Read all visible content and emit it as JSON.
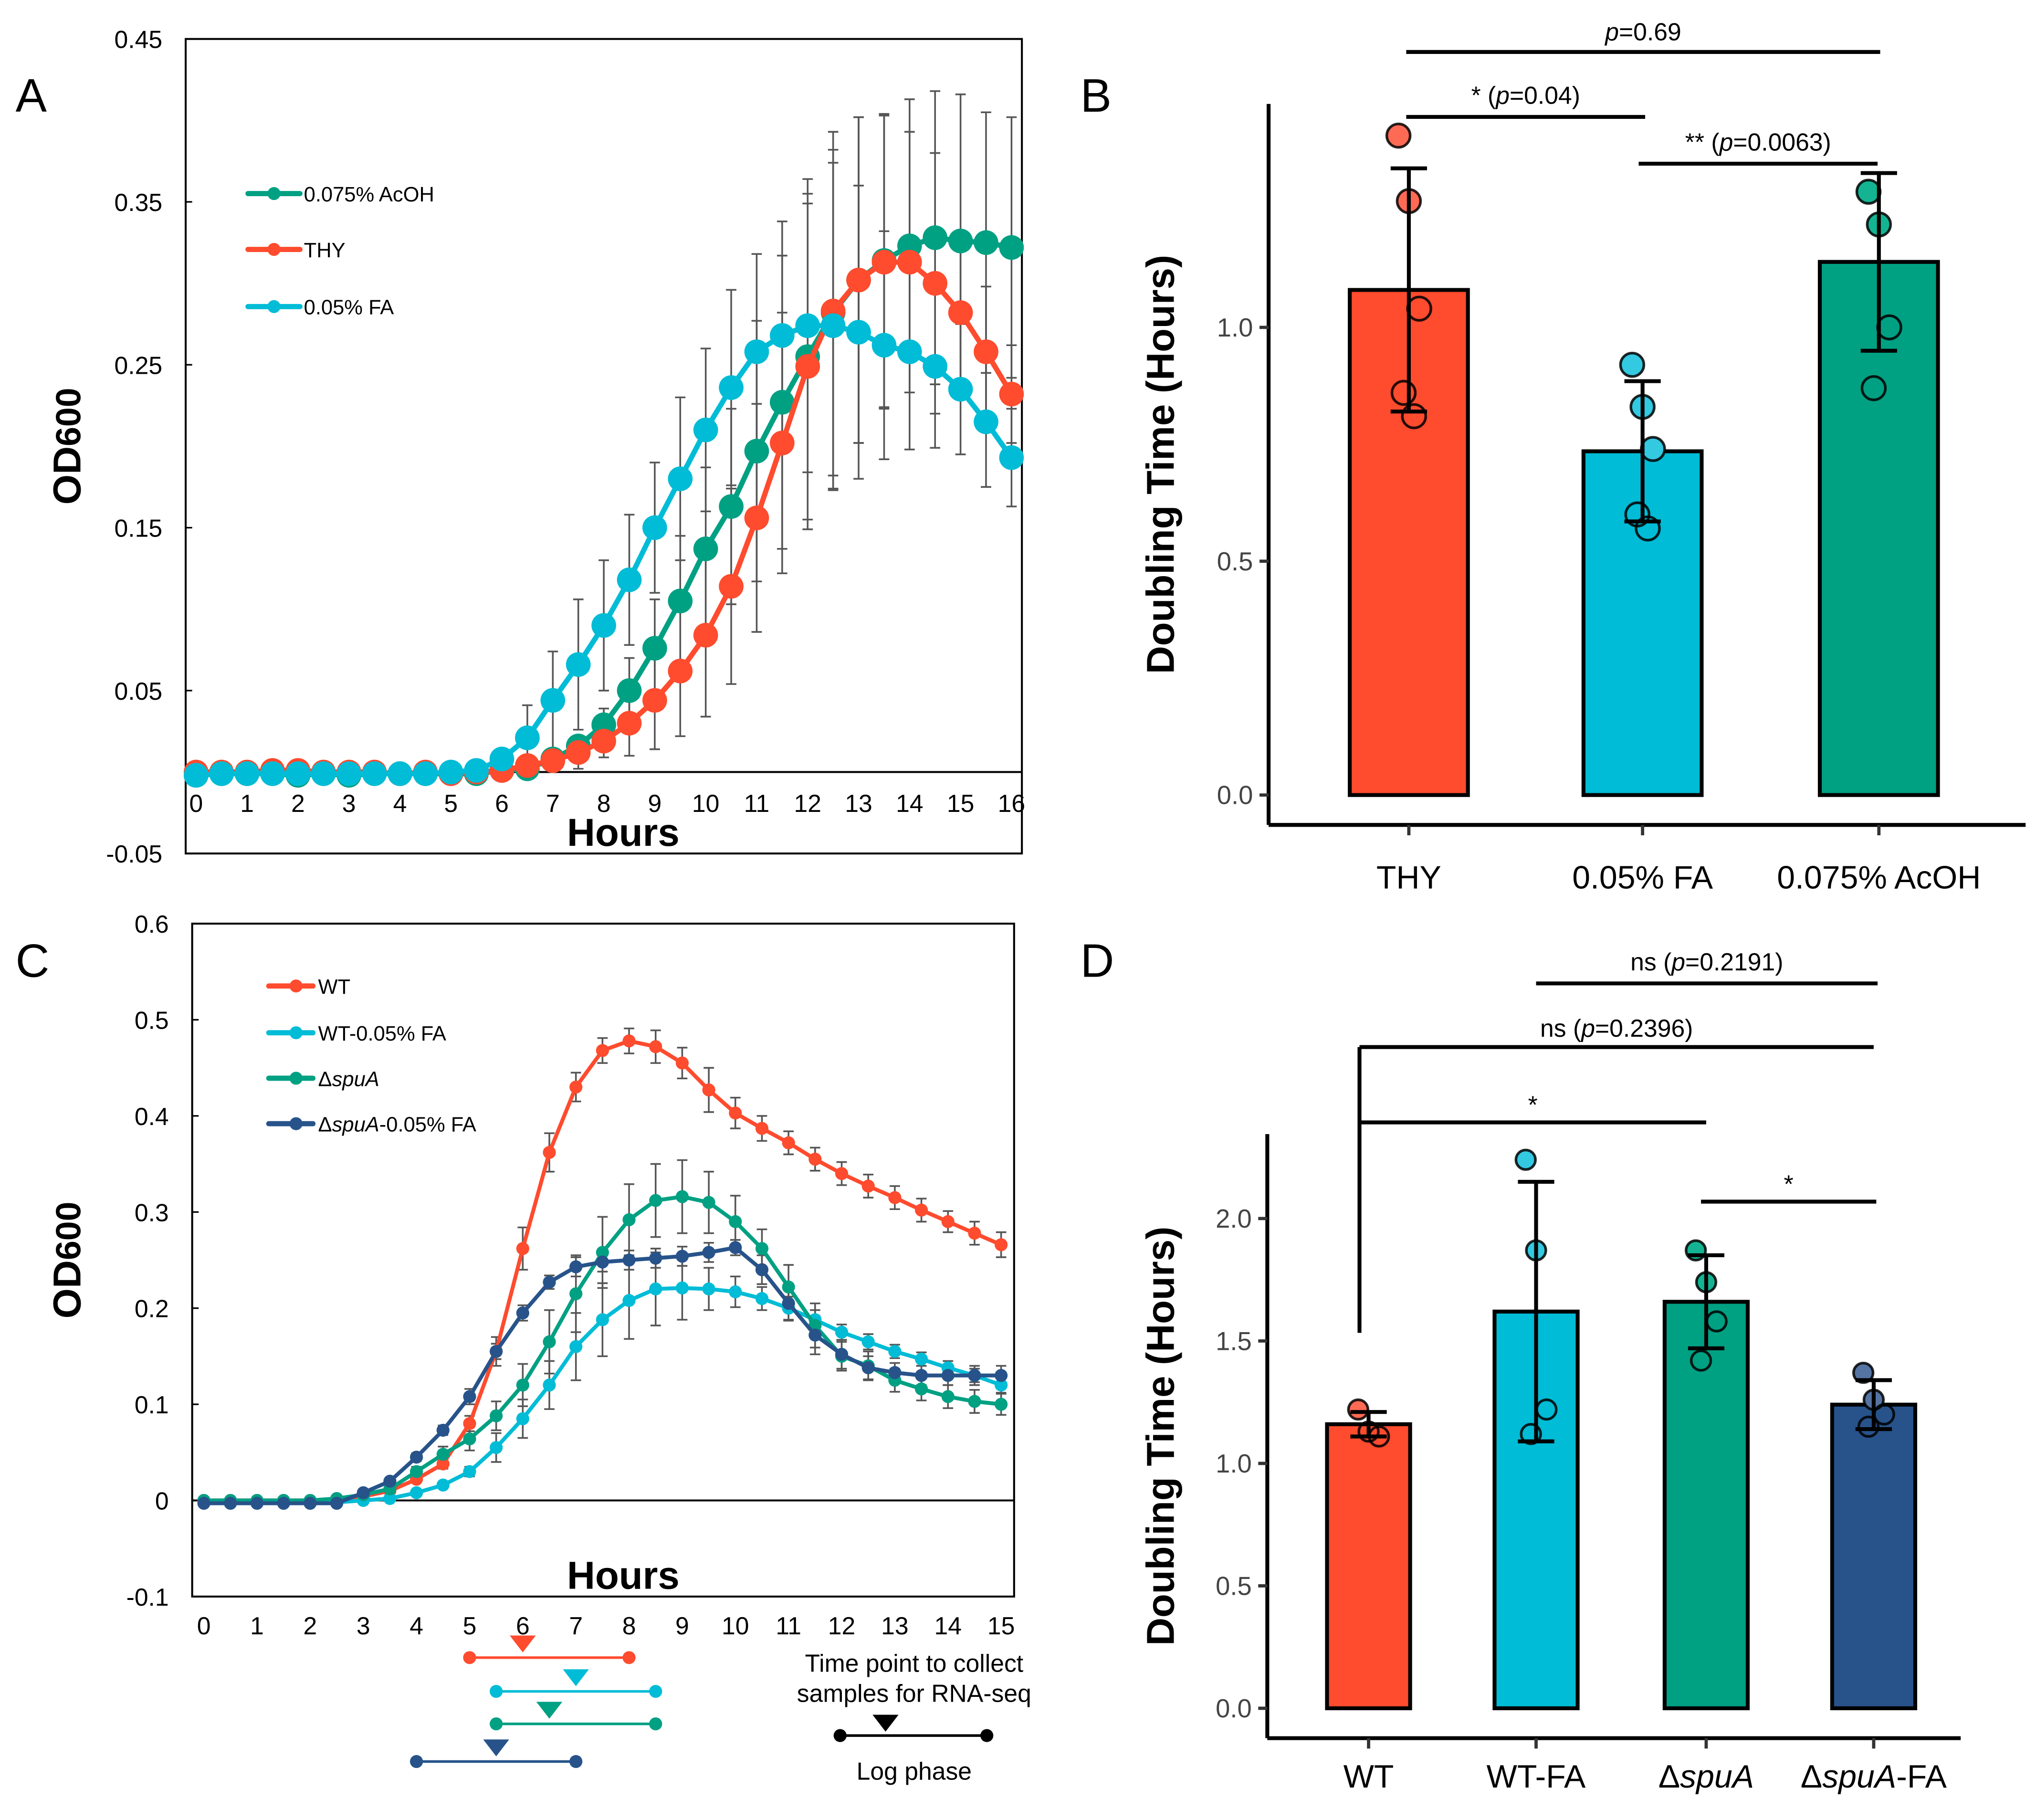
{
  "figure": {
    "panels": [
      "A",
      "B",
      "C",
      "D"
    ]
  },
  "colors": {
    "red": "#ff4b2e",
    "cyan": "#00bcd6",
    "green": "#00a083",
    "navy": "#27538a",
    "errorbar": "#555555"
  },
  "chart_data": [
    {
      "panel": "A",
      "type": "line",
      "xlabel": "Hours",
      "ylabel": "OD600",
      "ylabel_main": "OD",
      "ylabel_sub": "600",
      "xlim": [
        0,
        16
      ],
      "ylim": [
        -0.05,
        0.45
      ],
      "xticks": [
        "0",
        "1",
        "2",
        "3",
        "4",
        "5",
        "6",
        "7",
        "8",
        "9",
        "10",
        "11",
        "12",
        "13",
        "14",
        "15",
        "16"
      ],
      "yticks": [
        "0.45",
        "0.35",
        "0.25",
        "0.15",
        "0.05",
        "-0.05"
      ],
      "ytick_values": [
        0.45,
        0.35,
        0.25,
        0.15,
        0.05,
        -0.05
      ],
      "legend_position": "upper-left",
      "x": [
        0,
        0.5,
        1,
        1.5,
        2,
        2.5,
        3,
        3.5,
        4,
        4.5,
        5,
        5.5,
        6,
        6.5,
        7,
        7.5,
        8,
        8.5,
        9,
        9.5,
        10,
        10.5,
        11,
        11.5,
        12,
        12.5,
        13,
        13.5,
        14,
        14.5,
        15,
        15.5,
        16
      ],
      "series": [
        {
          "name": "0.075% AcOH",
          "color": "#00a083",
          "values": [
            -0.002,
            -0.001,
            -0.001,
            -0.001,
            -0.002,
            -0.001,
            -0.002,
            -0.001,
            -0.001,
            -0.001,
            -0.001,
            -0.001,
            0.001,
            0.002,
            0.008,
            0.016,
            0.029,
            0.05,
            0.076,
            0.105,
            0.137,
            0.163,
            0.197,
            0.227,
            0.255,
            0.282,
            0.302,
            0.314,
            0.323,
            0.328,
            0.326,
            0.325,
            0.322
          ],
          "errors": [
            0,
            0,
            0,
            0,
            0,
            0,
            0,
            0,
            0,
            0,
            0,
            0,
            0,
            0,
            0,
            0,
            0.01,
            0.02,
            0.03,
            0.04,
            0.05,
            0.06,
            0.08,
            0.09,
            0.1,
            0.1,
            0.1,
            0.09,
            0.09,
            0.09,
            0.09,
            0.08,
            0.08
          ]
        },
        {
          "name": "THY",
          "color": "#ff4b2e",
          "values": [
            0,
            0,
            0,
            0.001,
            0.001,
            0,
            0,
            0,
            -0.001,
            0,
            -0.001,
            0,
            0.001,
            0.004,
            0.007,
            0.012,
            0.019,
            0.03,
            0.044,
            0.062,
            0.084,
            0.114,
            0.156,
            0.202,
            0.249,
            0.283,
            0.302,
            0.313,
            0.313,
            0.3,
            0.282,
            0.258,
            0.232
          ],
          "errors": [
            0,
            0,
            0,
            0,
            0,
            0,
            0,
            0,
            0,
            0,
            0,
            0,
            0,
            0,
            0,
            0.01,
            0.01,
            0.02,
            0.03,
            0.04,
            0.05,
            0.06,
            0.07,
            0.08,
            0.1,
            0.11,
            0.1,
            0.09,
            0.08,
            0.08,
            0.05,
            0.04,
            0.03
          ]
        },
        {
          "name": "0.05% FA",
          "color": "#00bcd6",
          "values": [
            -0.002,
            -0.001,
            -0.001,
            -0.001,
            -0.001,
            -0.001,
            -0.001,
            -0.001,
            -0.001,
            -0.001,
            0,
            0.001,
            0.008,
            0.021,
            0.044,
            0.066,
            0.09,
            0.118,
            0.15,
            0.18,
            0.21,
            0.236,
            0.258,
            0.268,
            0.274,
            0.274,
            0.27,
            0.262,
            0.258,
            0.249,
            0.235,
            0.215,
            0.193
          ],
          "errors": [
            0,
            0,
            0,
            0,
            0,
            0,
            0,
            0,
            0,
            0,
            0,
            0,
            0,
            0.02,
            0.03,
            0.04,
            0.04,
            0.04,
            0.04,
            0.05,
            0.05,
            0.06,
            0.06,
            0.07,
            0.09,
            0.1,
            0.09,
            0.07,
            0.06,
            0.05,
            0.04,
            0.04,
            0.03
          ]
        }
      ]
    },
    {
      "panel": "B",
      "type": "bar",
      "ylabel": "Doubling Time (Hours)",
      "ylim": [
        -0.1,
        1.5
      ],
      "yticks": [
        "0.0",
        "0.5",
        "1.0"
      ],
      "ytick_values": [
        0.0,
        0.5,
        1.0
      ],
      "categories": [
        "THY",
        "0.05% FA",
        "0.075% AcOH"
      ],
      "bar_colors": [
        "#ff4b2e",
        "#00bcd6",
        "#00a083"
      ],
      "dot_colors": [
        "#ff6a55",
        "#33c9e0",
        "#14b493"
      ],
      "values": [
        1.08,
        0.735,
        1.14
      ],
      "sd": [
        0.26,
        0.15,
        0.19
      ],
      "points": [
        [
          1.41,
          1.27,
          1.04,
          0.86,
          0.81
        ],
        [
          0.92,
          0.83,
          0.74,
          0.6,
          0.57
        ],
        [
          1.29,
          1.22,
          1.0,
          0.87
        ]
      ],
      "annotations": [
        {
          "from": 0,
          "to": 2,
          "label_prefix": "",
          "p_label": "p",
          "p_value": "=0.69",
          "label_suffix": "",
          "level": 1.6
        },
        {
          "from": 0,
          "to": 1,
          "label_prefix": "* (",
          "p_label": "p",
          "p_value": "=0.04",
          "label_suffix": ")",
          "level": 1.45
        },
        {
          "from": 1,
          "to": 2,
          "label_prefix": "** (",
          "p_label": "p",
          "p_value": "=0.0063",
          "label_suffix": ")",
          "level": 1.35
        }
      ]
    },
    {
      "panel": "C",
      "type": "line",
      "xlabel": "Hours",
      "ylabel": "OD600",
      "ylabel_main": "OD",
      "ylabel_sub": "600",
      "xlim": [
        0,
        15
      ],
      "ylim": [
        -0.1,
        0.6
      ],
      "xticks": [
        "0",
        "1",
        "2",
        "3",
        "4",
        "5",
        "6",
        "7",
        "8",
        "9",
        "10",
        "11",
        "12",
        "13",
        "14",
        "15"
      ],
      "yticks": [
        "0.6",
        "0.5",
        "0.4",
        "0.3",
        "0.2",
        "0.1",
        "0",
        "-0.1"
      ],
      "ytick_values": [
        0.6,
        0.5,
        0.4,
        0.3,
        0.2,
        0.1,
        0,
        -0.1
      ],
      "legend_position": "upper-left",
      "x": [
        0,
        0.5,
        1,
        1.5,
        2,
        2.5,
        3,
        3.5,
        4,
        4.5,
        5,
        5.5,
        6,
        6.5,
        7,
        7.5,
        8,
        8.5,
        9,
        9.5,
        10,
        10.5,
        11,
        11.5,
        12,
        12.5,
        13,
        13.5,
        14,
        14.5,
        15
      ],
      "series": [
        {
          "name": "WT",
          "name_prefix": "",
          "name_italic": "",
          "name_suffix": "WT",
          "color": "#ff4b2e",
          "values": [
            0,
            0,
            0,
            0,
            0,
            0,
            0.004,
            0.01,
            0.022,
            0.038,
            0.08,
            0.155,
            0.262,
            0.362,
            0.43,
            0.468,
            0.478,
            0.472,
            0.455,
            0.427,
            0.403,
            0.387,
            0.372,
            0.355,
            0.34,
            0.327,
            0.315,
            0.302,
            0.29,
            0.278,
            0.266
          ],
          "errors": [
            0,
            0,
            0,
            0,
            0,
            0,
            0,
            0,
            0.003,
            0.005,
            0.008,
            0.015,
            0.022,
            0.02,
            0.015,
            0.013,
            0.013,
            0.017,
            0.016,
            0.023,
            0.016,
            0.013,
            0.012,
            0.012,
            0.012,
            0.012,
            0.012,
            0.012,
            0.011,
            0.012,
            0.013
          ]
        },
        {
          "name": "WT-0.05% FA",
          "name_prefix": "",
          "name_italic": "",
          "name_suffix": "WT-0.05% FA",
          "color": "#00bcd6",
          "values": [
            -0.002,
            -0.002,
            -0.002,
            -0.002,
            -0.002,
            -0.002,
            0,
            0.002,
            0.008,
            0.016,
            0.03,
            0.055,
            0.085,
            0.12,
            0.16,
            0.188,
            0.208,
            0.22,
            0.221,
            0.22,
            0.217,
            0.21,
            0.2,
            0.188,
            0.175,
            0.165,
            0.155,
            0.147,
            0.138,
            0.13,
            0.12
          ],
          "errors": [
            0,
            0,
            0,
            0,
            0,
            0,
            0,
            0,
            0,
            0.002,
            0.005,
            0.015,
            0.02,
            0.025,
            0.035,
            0.038,
            0.04,
            0.038,
            0.033,
            0.022,
            0.016,
            0.012,
            0.012,
            0.01,
            0.008,
            0.008,
            0.007,
            0.007,
            0.007,
            0.007,
            0.008
          ]
        },
        {
          "name": "ΔspuA",
          "name_prefix": "Δ",
          "name_italic": "spuA",
          "name_suffix": "",
          "color": "#00a083",
          "values": [
            0,
            0,
            0,
            0,
            0,
            0.002,
            0.006,
            0.012,
            0.03,
            0.048,
            0.064,
            0.088,
            0.12,
            0.165,
            0.215,
            0.258,
            0.292,
            0.312,
            0.316,
            0.31,
            0.29,
            0.262,
            0.222,
            0.182,
            0.15,
            0.14,
            0.125,
            0.116,
            0.108,
            0.103,
            0.1
          ],
          "errors": [
            0,
            0,
            0,
            0,
            0,
            0,
            0,
            0,
            0.005,
            0.008,
            0.012,
            0.015,
            0.022,
            0.033,
            0.04,
            0.037,
            0.037,
            0.038,
            0.038,
            0.032,
            0.027,
            0.02,
            0.023,
            0.023,
            0.015,
            0.015,
            0.012,
            0.012,
            0.012,
            0.012,
            0.011
          ]
        },
        {
          "name": "ΔspuA-0.05% FA",
          "name_prefix": "Δ",
          "name_italic": "spuA",
          "name_suffix": "-0.05% FA",
          "color": "#27538a",
          "values": [
            -0.003,
            -0.003,
            -0.003,
            -0.003,
            -0.003,
            -0.003,
            0.008,
            0.02,
            0.045,
            0.073,
            0.108,
            0.155,
            0.195,
            0.227,
            0.243,
            0.248,
            0.25,
            0.252,
            0.254,
            0.258,
            0.263,
            0.24,
            0.205,
            0.172,
            0.152,
            0.138,
            0.133,
            0.13,
            0.13,
            0.13,
            0.13
          ],
          "errors": [
            0,
            0,
            0,
            0,
            0,
            0,
            0,
            0.003,
            0.004,
            0.005,
            0.008,
            0.008,
            0.008,
            0.007,
            0.01,
            0.01,
            0.01,
            0.01,
            0.01,
            0.01,
            0.008,
            0.015,
            0.018,
            0.02,
            0.015,
            0.012,
            0.01,
            0.01,
            0.01,
            0.01,
            0.01
          ]
        }
      ],
      "log_phase": {
        "note_line1": "Time point to collect",
        "note_line2": "samples for RNA-seq",
        "legend_label": "Log phase",
        "ranges": [
          {
            "series": "WT",
            "color": "#ff4b2e",
            "start": 5,
            "end": 8,
            "sample": 6
          },
          {
            "series": "WT-0.05% FA",
            "color": "#00bcd6",
            "start": 5.5,
            "end": 8.5,
            "sample": 7
          },
          {
            "series": "ΔspuA",
            "color": "#00a083",
            "start": 5.5,
            "end": 8.5,
            "sample": 6.5
          },
          {
            "series": "ΔspuA-0.05% FA",
            "color": "#27538a",
            "start": 4,
            "end": 7,
            "sample": 5.5
          }
        ]
      }
    },
    {
      "panel": "D",
      "type": "bar",
      "ylabel": "Doubling Time (Hours)",
      "ylim": [
        -0.1,
        2.3
      ],
      "yticks": [
        "0.0",
        "0.5",
        "1.0",
        "1.5",
        "2.0"
      ],
      "ytick_values": [
        0.0,
        0.5,
        1.0,
        1.5,
        2.0
      ],
      "categories": [
        "WT",
        "WT-FA",
        "ΔspuA",
        "ΔspuA-FA"
      ],
      "category_parts": [
        {
          "prefix": "WT",
          "italic": "",
          "suffix": ""
        },
        {
          "prefix": "WT-FA",
          "italic": "",
          "suffix": ""
        },
        {
          "prefix": "Δ",
          "italic": "spuA",
          "suffix": ""
        },
        {
          "prefix": "Δ",
          "italic": "spuA",
          "suffix": "-FA"
        }
      ],
      "bar_colors": [
        "#ff4b2e",
        "#00bcd6",
        "#00a083",
        "#27538a"
      ],
      "dot_colors": [
        "#ff6a55",
        "#33c9e0",
        "#14b493",
        "#5574a3"
      ],
      "values": [
        1.16,
        1.62,
        1.66,
        1.24
      ],
      "sd": [
        0.05,
        0.53,
        0.19,
        0.1
      ],
      "points": [
        [
          1.22,
          1.13,
          1.11
        ],
        [
          2.24,
          1.87,
          1.22,
          1.12
        ],
        [
          1.87,
          1.74,
          1.58,
          1.42
        ],
        [
          1.37,
          1.26,
          1.2,
          1.15
        ]
      ],
      "annotations": [
        {
          "from": 1,
          "to": 3,
          "label": "ns (",
          "p_label": "p",
          "p_value": "=0.2191)",
          "level": 2.82
        },
        {
          "from": 0,
          "to": 3,
          "label": "ns (",
          "p_label": "p",
          "p_value": "=0.2396)",
          "level": 2.55,
          "drop_to": 1.55
        },
        {
          "from": 0,
          "to": 2,
          "label": "*",
          "p_label": "",
          "p_value": "",
          "level": 2.24
        },
        {
          "from": 2,
          "to": 3,
          "label": "*",
          "p_label": "",
          "p_value": "",
          "level": 1.91
        }
      ]
    }
  ]
}
